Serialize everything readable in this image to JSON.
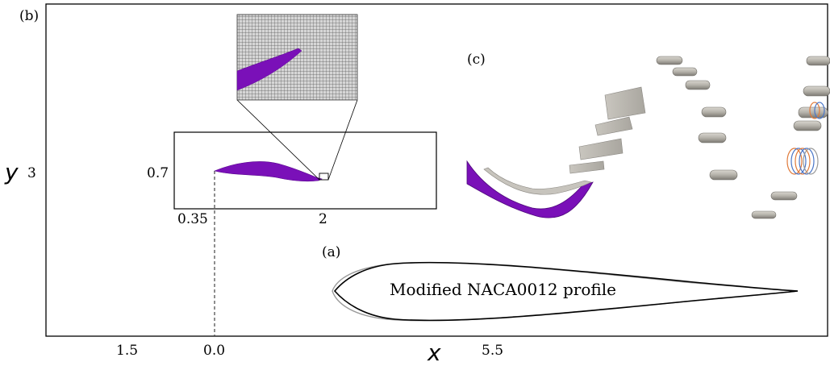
{
  "panels": {
    "b": {
      "label": "(b)"
    },
    "a": {
      "label": "(a)",
      "profile_caption": "Modified NACA0012 profile"
    },
    "c": {
      "label": "(c)"
    }
  },
  "axes": {
    "x_symbol": "x",
    "y_symbol": "y",
    "x_ticks": [
      "1.5",
      "0.0",
      "5.5"
    ],
    "y_ticks": [
      "3"
    ]
  },
  "inset": {
    "y_tick": "0.7",
    "x_ticks": [
      "0.35",
      "2"
    ]
  },
  "colors": {
    "fish_body": "#7a10b8",
    "fish_body_dark": "#5a0a8e",
    "mesh_bg": "#d4d4d4",
    "mesh_line": "#555555",
    "vortex_tube": "#b9b6ae",
    "frame": "#000000"
  }
}
